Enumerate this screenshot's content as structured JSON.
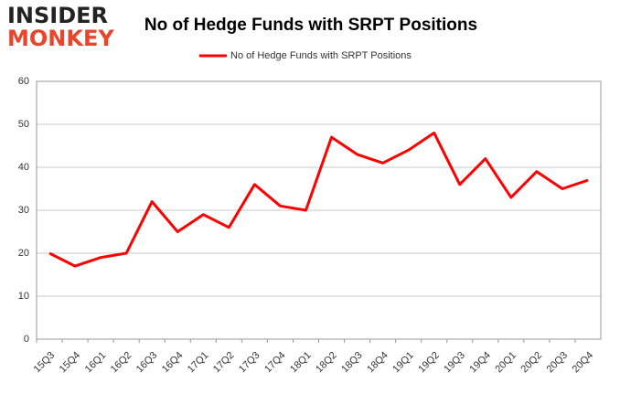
{
  "logo": {
    "line1": "INSIDER",
    "line2": "MONKEY"
  },
  "chart_data": {
    "type": "line",
    "title": "No of Hedge Funds with SRPT Positions",
    "categories": [
      "15Q3",
      "15Q4",
      "16Q1",
      "16Q2",
      "16Q3",
      "16Q4",
      "17Q1",
      "17Q2",
      "17Q3",
      "17Q4",
      "18Q1",
      "18Q2",
      "18Q3",
      "18Q4",
      "19Q1",
      "19Q2",
      "19Q3",
      "19Q4",
      "20Q1",
      "20Q2",
      "20Q3",
      "20Q4"
    ],
    "series": [
      {
        "name": "No of Hedge Funds with SRPT Positions",
        "color": "#ff0000",
        "values": [
          20,
          17,
          19,
          20,
          32,
          25,
          29,
          26,
          36,
          31,
          30,
          47,
          43,
          41,
          44,
          48,
          36,
          42,
          33,
          39,
          35,
          37
        ]
      }
    ],
    "ylim": [
      0,
      60
    ],
    "yticks": [
      0,
      10,
      20,
      30,
      40,
      50,
      60
    ],
    "grid": true,
    "legend": "top"
  }
}
